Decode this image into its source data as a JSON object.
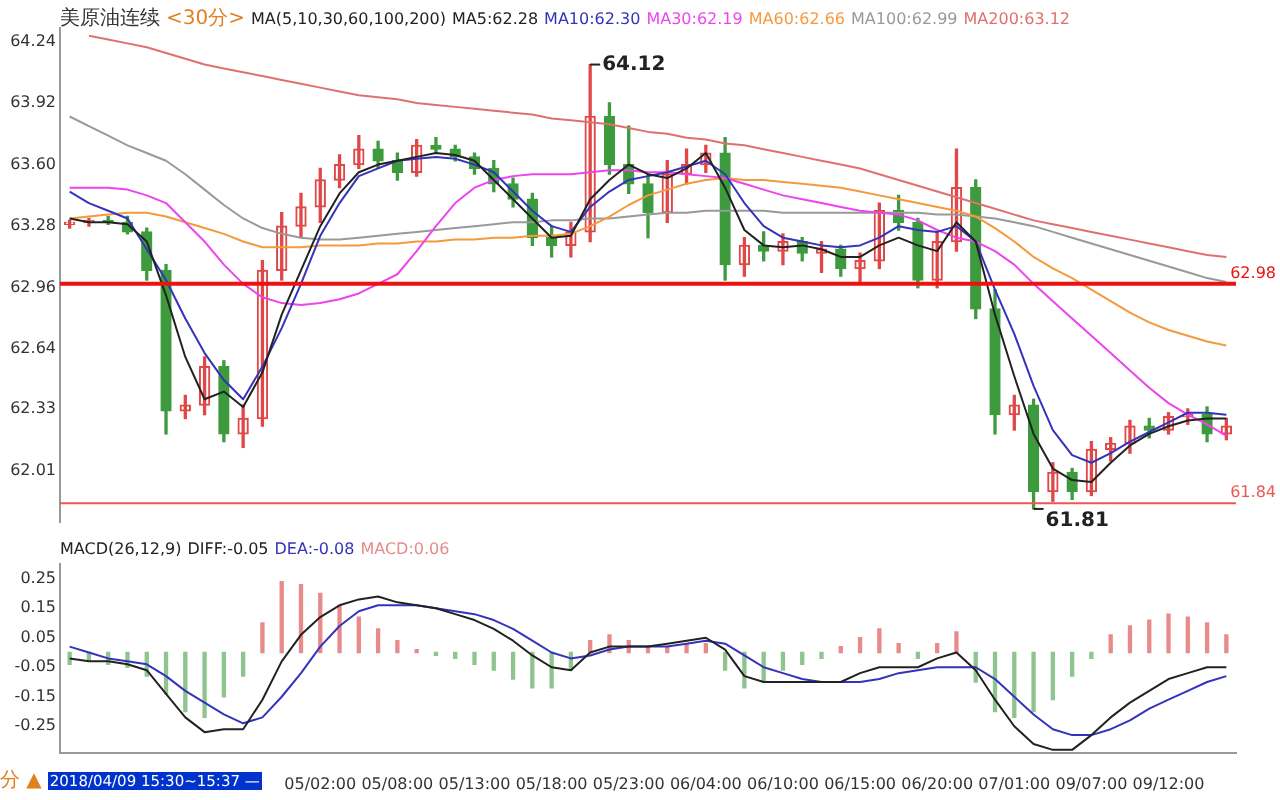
{
  "chart_data": [
    {
      "type": "candlestick",
      "title": "美原油连续",
      "subtitle": "<30分>",
      "legend_title": "MA(5,10,30,60,100,200)",
      "legend": "top",
      "tick_labels": "y",
      "categories": [
        null,
        null,
        null,
        null,
        null,
        null,
        null,
        null,
        null,
        null,
        null,
        null,
        null,
        null,
        null,
        null,
        null,
        null,
        null,
        null,
        null,
        null,
        null,
        null,
        null,
        null,
        null,
        null,
        null,
        null,
        null,
        null,
        null,
        null,
        null,
        null,
        null,
        null,
        null,
        null,
        null,
        null,
        null,
        null,
        null,
        null,
        null,
        null,
        null,
        null,
        null,
        null,
        null,
        null,
        null,
        null,
        null,
        null,
        null,
        null,
        null
      ],
      "ohlc": [
        [
          63.29,
          63.31,
          63.27,
          63.3
        ],
        [
          63.3,
          63.32,
          63.28,
          63.31
        ],
        [
          63.31,
          63.33,
          63.29,
          63.3
        ],
        [
          63.3,
          63.33,
          63.24,
          63.25
        ],
        [
          63.25,
          63.27,
          63.0,
          63.05
        ],
        [
          63.05,
          63.08,
          62.2,
          62.32
        ],
        [
          62.32,
          62.4,
          62.28,
          62.35
        ],
        [
          62.35,
          62.6,
          62.3,
          62.55
        ],
        [
          62.55,
          62.58,
          62.16,
          62.2
        ],
        [
          62.2,
          62.35,
          62.13,
          62.28
        ],
        [
          62.28,
          63.1,
          62.24,
          63.05
        ],
        [
          63.05,
          63.35,
          63.0,
          63.28
        ],
        [
          63.28,
          63.45,
          63.22,
          63.38
        ],
        [
          63.38,
          63.58,
          63.3,
          63.52
        ],
        [
          63.52,
          63.65,
          63.48,
          63.6
        ],
        [
          63.6,
          63.75,
          63.58,
          63.68
        ],
        [
          63.68,
          63.72,
          63.58,
          63.62
        ],
        [
          63.62,
          63.66,
          63.52,
          63.56
        ],
        [
          63.56,
          63.73,
          63.54,
          63.7
        ],
        [
          63.7,
          63.74,
          63.66,
          63.68
        ],
        [
          63.68,
          63.7,
          63.62,
          63.64
        ],
        [
          63.64,
          63.66,
          63.55,
          63.58
        ],
        [
          63.58,
          63.62,
          63.46,
          63.5
        ],
        [
          63.5,
          63.53,
          63.38,
          63.42
        ],
        [
          63.42,
          63.45,
          63.18,
          63.22
        ],
        [
          63.22,
          63.28,
          63.12,
          63.18
        ],
        [
          63.18,
          63.3,
          63.12,
          63.25
        ],
        [
          63.25,
          64.12,
          63.2,
          63.85
        ],
        [
          63.85,
          63.92,
          63.55,
          63.6
        ],
        [
          63.6,
          63.8,
          63.45,
          63.5
        ],
        [
          63.5,
          63.55,
          63.22,
          63.35
        ],
        [
          63.35,
          63.62,
          63.3,
          63.55
        ],
        [
          63.55,
          63.68,
          63.5,
          63.6
        ],
        [
          63.6,
          63.7,
          63.56,
          63.66
        ],
        [
          63.66,
          63.74,
          63.0,
          63.08
        ],
        [
          63.08,
          63.22,
          63.02,
          63.18
        ],
        [
          63.18,
          63.25,
          63.1,
          63.15
        ],
        [
          63.15,
          63.24,
          63.08,
          63.2
        ],
        [
          63.2,
          63.22,
          63.1,
          63.14
        ],
        [
          63.14,
          63.2,
          63.04,
          63.16
        ],
        [
          63.16,
          63.18,
          63.02,
          63.06
        ],
        [
          63.06,
          63.14,
          62.98,
          63.1
        ],
        [
          63.1,
          63.4,
          63.06,
          63.36
        ],
        [
          63.36,
          63.44,
          63.26,
          63.3
        ],
        [
          63.3,
          63.32,
          62.96,
          63.0
        ],
        [
          63.0,
          63.25,
          62.96,
          63.2
        ],
        [
          63.2,
          63.68,
          63.15,
          63.48
        ],
        [
          63.48,
          63.52,
          62.8,
          62.85
        ],
        [
          62.85,
          62.95,
          62.2,
          62.3
        ],
        [
          62.3,
          62.4,
          62.22,
          62.35
        ],
        [
          62.35,
          62.38,
          61.81,
          61.9
        ],
        [
          61.9,
          62.05,
          61.85,
          62.0
        ],
        [
          62.0,
          62.02,
          61.86,
          61.9
        ],
        [
          61.9,
          62.16,
          61.88,
          62.12
        ],
        [
          62.12,
          62.18,
          62.06,
          62.15
        ],
        [
          62.15,
          62.27,
          62.1,
          62.24
        ],
        [
          62.24,
          62.28,
          62.18,
          62.22
        ],
        [
          62.22,
          62.31,
          62.2,
          62.29
        ],
        [
          62.29,
          62.33,
          62.25,
          62.3
        ],
        [
          62.3,
          62.34,
          62.16,
          62.2
        ],
        [
          62.2,
          62.28,
          62.17,
          62.24
        ]
      ],
      "colors": [
        "#e04848",
        "#e04848",
        "#3d9b3d",
        "#3d9b3d",
        "#3d9b3d",
        "#3d9b3d",
        "#e04848",
        "#e04848",
        "#3d9b3d",
        "#e04848",
        "#e04848",
        "#e04848",
        "#e04848",
        "#e04848",
        "#e04848",
        "#e04848",
        "#3d9b3d",
        "#3d9b3d",
        "#e04848",
        "#3d9b3d",
        "#3d9b3d",
        "#3d9b3d",
        "#3d9b3d",
        "#3d9b3d",
        "#3d9b3d",
        "#3d9b3d",
        "#e04848",
        "#e04848",
        "#3d9b3d",
        "#3d9b3d",
        "#3d9b3d",
        "#e04848",
        "#e04848",
        "#e04848",
        "#3d9b3d",
        "#e04848",
        "#3d9b3d",
        "#e04848",
        "#3d9b3d",
        "#e04848",
        "#3d9b3d",
        "#e04848",
        "#e04848",
        "#3d9b3d",
        "#3d9b3d",
        "#e04848",
        "#e04848",
        "#3d9b3d",
        "#3d9b3d",
        "#e04848",
        "#3d9b3d",
        "#e04848",
        "#3d9b3d",
        "#e04848",
        "#e04848",
        "#e04848",
        "#3d9b3d",
        "#e04848",
        "#e04848",
        "#3d9b3d",
        "#e04848"
      ],
      "series": [
        {
          "type": "line",
          "name": "MA5:62.28",
          "color": "#222222",
          "values": [
            63.32,
            63.3,
            63.3,
            63.29,
            63.2,
            62.92,
            62.6,
            62.38,
            62.42,
            62.34,
            62.52,
            62.82,
            63.05,
            63.28,
            63.45,
            63.56,
            63.6,
            63.62,
            63.64,
            63.66,
            63.65,
            63.62,
            63.52,
            63.42,
            63.32,
            63.22,
            63.23,
            63.42,
            63.52,
            63.6,
            63.55,
            63.53,
            63.58,
            63.66,
            63.48,
            63.26,
            63.18,
            63.17,
            63.18,
            63.16,
            63.12,
            63.12,
            63.18,
            63.22,
            63.18,
            63.15,
            63.3,
            63.2,
            62.82,
            62.5,
            62.2,
            62.02,
            61.96,
            61.95,
            62.05,
            62.14,
            62.2,
            62.24,
            62.27,
            62.28,
            62.28
          ]
        },
        {
          "type": "line",
          "name": "MA10:62.30",
          "color": "#3333bb",
          "values": [
            63.46,
            63.4,
            63.36,
            63.32,
            63.16,
            63.0,
            62.8,
            62.62,
            62.48,
            62.38,
            62.55,
            62.75,
            62.98,
            63.23,
            63.4,
            63.54,
            63.58,
            63.62,
            63.63,
            63.64,
            63.63,
            63.6,
            63.56,
            63.46,
            63.36,
            63.28,
            63.25,
            63.38,
            63.46,
            63.52,
            63.54,
            63.56,
            63.59,
            63.62,
            63.55,
            63.4,
            63.28,
            63.22,
            63.2,
            63.18,
            63.17,
            63.18,
            63.22,
            63.28,
            63.26,
            63.25,
            63.28,
            63.2,
            62.95,
            62.72,
            62.45,
            62.22,
            62.09,
            62.05,
            62.1,
            62.16,
            62.21,
            62.26,
            62.31,
            62.31,
            62.3
          ]
        },
        {
          "type": "line",
          "name": "MA30:62.19",
          "color": "#ee44ee",
          "values": [
            63.48,
            63.48,
            63.48,
            63.47,
            63.44,
            63.4,
            63.3,
            63.2,
            63.08,
            62.98,
            62.91,
            62.88,
            62.87,
            62.88,
            62.9,
            62.93,
            62.98,
            63.03,
            63.15,
            63.28,
            63.4,
            63.48,
            63.52,
            63.54,
            63.55,
            63.55,
            63.55,
            63.56,
            63.57,
            63.57,
            63.56,
            63.56,
            63.55,
            63.54,
            63.53,
            63.5,
            63.47,
            63.44,
            63.42,
            63.4,
            63.38,
            63.36,
            63.35,
            63.34,
            63.31,
            63.26,
            63.22,
            63.2,
            63.15,
            63.08,
            62.98,
            62.89,
            62.8,
            62.71,
            62.62,
            62.53,
            62.44,
            62.36,
            62.3,
            62.25,
            62.19
          ]
        },
        {
          "type": "line",
          "name": "MA60:62.66",
          "color": "#f59a3c",
          "values": [
            63.32,
            63.33,
            63.34,
            63.35,
            63.35,
            63.33,
            63.3,
            63.27,
            63.24,
            63.2,
            63.17,
            63.17,
            63.17,
            63.18,
            63.18,
            63.18,
            63.19,
            63.19,
            63.2,
            63.2,
            63.21,
            63.21,
            63.22,
            63.22,
            63.23,
            63.23,
            63.24,
            63.28,
            63.33,
            63.39,
            63.44,
            63.47,
            63.5,
            63.52,
            63.53,
            63.52,
            63.52,
            63.51,
            63.5,
            63.49,
            63.48,
            63.46,
            63.44,
            63.42,
            63.4,
            63.38,
            63.36,
            63.33,
            63.27,
            63.2,
            63.12,
            63.06,
            63.01,
            62.95,
            62.89,
            62.83,
            62.78,
            62.74,
            62.71,
            62.68,
            62.66
          ]
        },
        {
          "type": "line",
          "name": "MA100:62.99",
          "color": "#999999",
          "values": [
            63.85,
            63.8,
            63.75,
            63.7,
            63.66,
            63.62,
            63.55,
            63.47,
            63.39,
            63.32,
            63.27,
            63.24,
            63.22,
            63.21,
            63.21,
            63.22,
            63.23,
            63.24,
            63.25,
            63.26,
            63.27,
            63.28,
            63.29,
            63.3,
            63.3,
            63.31,
            63.31,
            63.32,
            63.32,
            63.33,
            63.34,
            63.35,
            63.35,
            63.36,
            63.36,
            63.36,
            63.36,
            63.35,
            63.35,
            63.35,
            63.35,
            63.35,
            63.35,
            63.35,
            63.35,
            63.34,
            63.34,
            63.33,
            63.32,
            63.3,
            63.28,
            63.25,
            63.22,
            63.19,
            63.16,
            63.13,
            63.1,
            63.07,
            63.04,
            63.01,
            62.99
          ]
        },
        {
          "type": "line",
          "name": "MA200:63.12",
          "color": "#e07070",
          "values": [
            null,
            64.27,
            64.25,
            64.23,
            64.21,
            64.18,
            64.15,
            64.12,
            64.1,
            64.08,
            64.06,
            64.04,
            64.02,
            64.0,
            63.98,
            63.96,
            63.95,
            63.94,
            63.92,
            63.91,
            63.9,
            63.89,
            63.88,
            63.87,
            63.86,
            63.84,
            63.83,
            63.82,
            63.81,
            63.79,
            63.77,
            63.76,
            63.74,
            63.73,
            63.71,
            63.7,
            63.68,
            63.66,
            63.64,
            63.62,
            63.6,
            63.58,
            63.55,
            63.52,
            63.49,
            63.46,
            63.43,
            63.4,
            63.37,
            63.34,
            63.31,
            63.29,
            63.27,
            63.25,
            63.23,
            63.21,
            63.19,
            63.17,
            63.15,
            63.13,
            63.12
          ]
        }
      ],
      "ylim": [
        61.74,
        64.31
      ],
      "yticks": [
        {
          "value": 64.24,
          "label": "64.24"
        },
        {
          "value": 63.92,
          "label": "63.92"
        },
        {
          "value": 63.6,
          "label": "63.60"
        },
        {
          "value": 63.28,
          "label": "63.28"
        },
        {
          "value": 62.96,
          "label": "62.96"
        },
        {
          "value": 62.64,
          "label": "62.64"
        },
        {
          "value": 62.33,
          "label": "62.33"
        },
        {
          "value": 62.01,
          "label": "62.01"
        }
      ],
      "ref_lines": [
        {
          "axis": "y",
          "value": 62.98,
          "label": "62.98",
          "color": "#ee1111"
        },
        {
          "axis": "y",
          "value": 61.84,
          "label": "61.84",
          "color": "#ee5555"
        }
      ],
      "annotations": [
        "64.12",
        "61.81"
      ]
    },
    {
      "type": "bar",
      "legend_title": "MACD(26,12,9)",
      "legend": "top left",
      "categories": [
        null,
        null,
        null,
        null,
        null,
        null,
        null,
        null,
        null,
        null,
        null,
        null,
        null,
        "05/02:00",
        null,
        null,
        null,
        "05/08:00",
        null,
        null,
        null,
        "05/13:00",
        null,
        null,
        null,
        "05/18:00",
        null,
        null,
        null,
        "05/23:00",
        null,
        null,
        null,
        "06/04:00",
        null,
        null,
        null,
        "06/10:00",
        null,
        null,
        null,
        "06/15:00",
        null,
        null,
        null,
        "06/20:00",
        null,
        null,
        null,
        "07/01:00",
        null,
        null,
        null,
        "09/07:00",
        null,
        null,
        null,
        "09/12:00",
        null,
        null,
        null
      ],
      "series": [
        {
          "type": "line",
          "name": "DIFF:-0.05",
          "color": "#222222",
          "values": [
            -0.02,
            -0.03,
            -0.03,
            -0.04,
            -0.06,
            -0.14,
            -0.22,
            -0.27,
            -0.26,
            -0.26,
            -0.16,
            -0.03,
            0.06,
            0.12,
            0.16,
            0.18,
            0.19,
            0.17,
            0.16,
            0.15,
            0.13,
            0.11,
            0.08,
            0.04,
            -0.01,
            -0.05,
            -0.06,
            0.0,
            0.02,
            0.02,
            0.02,
            0.03,
            0.04,
            0.05,
            0.01,
            -0.08,
            -0.1,
            -0.1,
            -0.1,
            -0.1,
            -0.1,
            -0.07,
            -0.05,
            -0.05,
            -0.05,
            -0.02,
            0.0,
            -0.06,
            -0.16,
            -0.25,
            -0.31,
            -0.33,
            -0.33,
            -0.28,
            -0.22,
            -0.17,
            -0.13,
            -0.09,
            -0.07,
            -0.05,
            -0.05
          ]
        },
        {
          "type": "line",
          "name": "DEA:-0.08",
          "color": "#3333bb",
          "values": [
            0.02,
            0.0,
            -0.02,
            -0.03,
            -0.04,
            -0.08,
            -0.13,
            -0.17,
            -0.21,
            -0.24,
            -0.22,
            -0.15,
            -0.07,
            0.02,
            0.09,
            0.14,
            0.16,
            0.16,
            0.16,
            0.15,
            0.14,
            0.13,
            0.11,
            0.08,
            0.04,
            0.0,
            -0.02,
            -0.01,
            0.01,
            0.02,
            0.02,
            0.02,
            0.03,
            0.04,
            0.03,
            -0.01,
            -0.05,
            -0.07,
            -0.09,
            -0.1,
            -0.1,
            -0.1,
            -0.09,
            -0.07,
            -0.06,
            -0.05,
            -0.05,
            -0.05,
            -0.09,
            -0.15,
            -0.21,
            -0.26,
            -0.28,
            -0.28,
            -0.26,
            -0.23,
            -0.19,
            -0.16,
            -0.13,
            -0.1,
            -0.08
          ]
        },
        {
          "type": "bar",
          "name": "MACD:0.06",
          "color": "#e88a8a",
          "values": [
            -0.04,
            -0.03,
            -0.04,
            -0.05,
            -0.08,
            -0.14,
            -0.2,
            -0.22,
            -0.15,
            -0.08,
            0.1,
            0.24,
            0.23,
            0.2,
            0.16,
            0.12,
            0.08,
            0.04,
            0.01,
            -0.01,
            -0.02,
            -0.04,
            -0.06,
            -0.09,
            -0.12,
            -0.12,
            -0.06,
            0.04,
            0.06,
            0.04,
            0.02,
            0.02,
            0.03,
            0.03,
            -0.06,
            -0.12,
            -0.1,
            -0.06,
            -0.04,
            -0.02,
            0.02,
            0.05,
            0.08,
            0.03,
            -0.02,
            0.03,
            0.07,
            -0.1,
            -0.2,
            -0.22,
            -0.2,
            -0.16,
            -0.08,
            -0.02,
            0.06,
            0.09,
            0.11,
            0.13,
            0.12,
            0.1,
            0.06
          ],
          "colors": [
            "#8fc48f",
            "#8fc48f",
            "#8fc48f",
            "#8fc48f",
            "#8fc48f",
            "#8fc48f",
            "#8fc48f",
            "#8fc48f",
            "#8fc48f",
            "#8fc48f",
            "#e88a8a",
            "#e88a8a",
            "#e88a8a",
            "#e88a8a",
            "#e88a8a",
            "#e88a8a",
            "#e88a8a",
            "#e88a8a",
            "#e88a8a",
            "#8fc48f",
            "#8fc48f",
            "#8fc48f",
            "#8fc48f",
            "#8fc48f",
            "#8fc48f",
            "#8fc48f",
            "#8fc48f",
            "#e88a8a",
            "#e88a8a",
            "#e88a8a",
            "#e88a8a",
            "#e88a8a",
            "#e88a8a",
            "#e88a8a",
            "#8fc48f",
            "#8fc48f",
            "#8fc48f",
            "#8fc48f",
            "#8fc48f",
            "#8fc48f",
            "#e88a8a",
            "#e88a8a",
            "#e88a8a",
            "#e88a8a",
            "#8fc48f",
            "#e88a8a",
            "#e88a8a",
            "#8fc48f",
            "#8fc48f",
            "#8fc48f",
            "#8fc48f",
            "#8fc48f",
            "#8fc48f",
            "#8fc48f",
            "#e88a8a",
            "#e88a8a",
            "#e88a8a",
            "#e88a8a",
            "#e88a8a",
            "#e88a8a",
            "#e88a8a"
          ]
        }
      ],
      "ylim": [
        -0.34,
        0.3
      ],
      "yticks": [
        0.25,
        0.15,
        0.05,
        -0.05,
        -0.15,
        -0.25
      ],
      "annotations": [
        "分 ▲",
        "2018/04/09 15:30~15:37 —"
      ]
    }
  ]
}
